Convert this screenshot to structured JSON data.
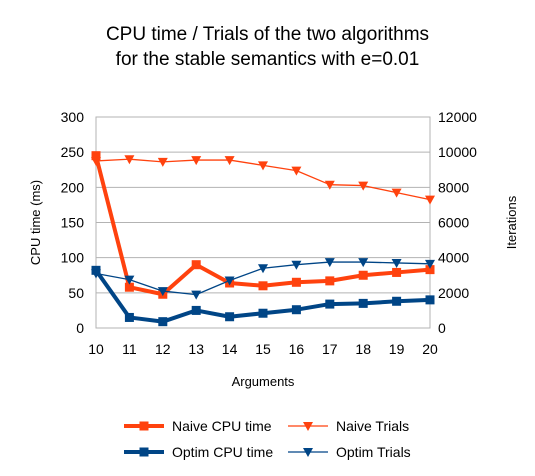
{
  "chart_data": {
    "type": "line",
    "title_line1": "CPU time / Trials of the two algorithms",
    "title_line2": "for the stable semantics with e=0.01",
    "xlabel": "Arguments",
    "ylabel_left": "CPU time (ms)",
    "ylabel_right": "Iterations",
    "x": [
      10,
      11,
      12,
      13,
      14,
      15,
      16,
      17,
      18,
      19,
      20
    ],
    "xlim": [
      10,
      20
    ],
    "ylim_left": [
      0,
      300
    ],
    "ylim_right": [
      0,
      12000
    ],
    "yticks_left": [
      0,
      50,
      100,
      150,
      200,
      250,
      300
    ],
    "yticks_right": [
      0,
      2000,
      4000,
      6000,
      8000,
      10000,
      12000
    ],
    "series": [
      {
        "name": "Naive CPU time",
        "axis": "left",
        "marker": "square",
        "color": "#ff420e",
        "width": "thick",
        "values": [
          245,
          58,
          48,
          90,
          64,
          60,
          65,
          67,
          75,
          79,
          83
        ]
      },
      {
        "name": "Naive Trials",
        "axis": "right",
        "marker": "triangle-down",
        "color": "#ff420e",
        "width": "thin",
        "values": [
          9500,
          9600,
          9450,
          9550,
          9550,
          9250,
          8950,
          8150,
          8100,
          7700,
          7300
        ]
      },
      {
        "name": "Optim CPU time",
        "axis": "left",
        "marker": "square",
        "color": "#004586",
        "width": "thick",
        "values": [
          82,
          15,
          9,
          25,
          16,
          21,
          26,
          34,
          35,
          38,
          40
        ]
      },
      {
        "name": "Optim Trials",
        "axis": "right",
        "marker": "triangle-down",
        "color": "#004586",
        "width": "thin",
        "values": [
          3100,
          2750,
          2100,
          1900,
          2700,
          3400,
          3600,
          3750,
          3750,
          3700,
          3650
        ]
      }
    ],
    "legend_position": "bottom"
  }
}
